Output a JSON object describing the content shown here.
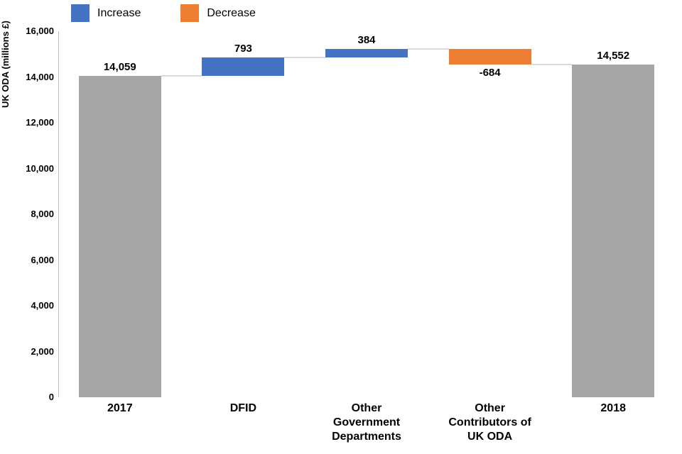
{
  "chart_data": {
    "type": "bar",
    "subtype": "waterfall",
    "title": "",
    "ylabel": "UK ODA (millions £)",
    "xlabel": "",
    "ylim": [
      0,
      16000
    ],
    "grid": false,
    "legend_position": "top-left",
    "legend": [
      {
        "label": "Increase",
        "color": "#4472c4"
      },
      {
        "label": "Decrease",
        "color": "#ed7d31"
      }
    ],
    "colors": {
      "total": "#a6a6a6",
      "increase": "#4472c4",
      "decrease": "#ed7d31",
      "axis_line": "#bfbfbf",
      "connector": "#d9d9d9",
      "text": "#000000"
    },
    "y_ticks": [
      {
        "label": "16,000",
        "value": 16000
      },
      {
        "label": "14,000",
        "value": 14000
      },
      {
        "label": "12,000",
        "value": 12000
      },
      {
        "label": "10,000",
        "value": 10000
      },
      {
        "label": "8,000",
        "value": 8000
      },
      {
        "label": "6,000",
        "value": 6000
      },
      {
        "label": "4,000",
        "value": 4000
      },
      {
        "label": "2,000",
        "value": 2000
      },
      {
        "label": "0",
        "value": 0
      }
    ],
    "bars": [
      {
        "category": "2017",
        "category_lines": [
          "2017"
        ],
        "role": "total",
        "start": 0,
        "end": 14059,
        "value": 14059,
        "value_label": "14,059",
        "value_label_position": "above"
      },
      {
        "category": "DFID",
        "category_lines": [
          "DFID"
        ],
        "role": "increase",
        "start": 14059,
        "end": 14852,
        "value": 793,
        "value_label": "793",
        "value_label_position": "above"
      },
      {
        "category": "Other Government Departments",
        "category_lines": [
          "Other",
          "Government",
          "Departments"
        ],
        "role": "increase",
        "start": 14852,
        "end": 15236,
        "value": 384,
        "value_label": "384",
        "value_label_position": "above"
      },
      {
        "category": "Other Contributors of UK ODA",
        "category_lines": [
          "Other",
          "Contributors of",
          "UK ODA"
        ],
        "role": "decrease",
        "start": 15236,
        "end": 14552,
        "value": -684,
        "value_label": "-684",
        "value_label_position": "below"
      },
      {
        "category": "2018",
        "category_lines": [
          "2018"
        ],
        "role": "total",
        "start": 0,
        "end": 14552,
        "value": 14552,
        "value_label": "14,552",
        "value_label_position": "above"
      }
    ]
  }
}
